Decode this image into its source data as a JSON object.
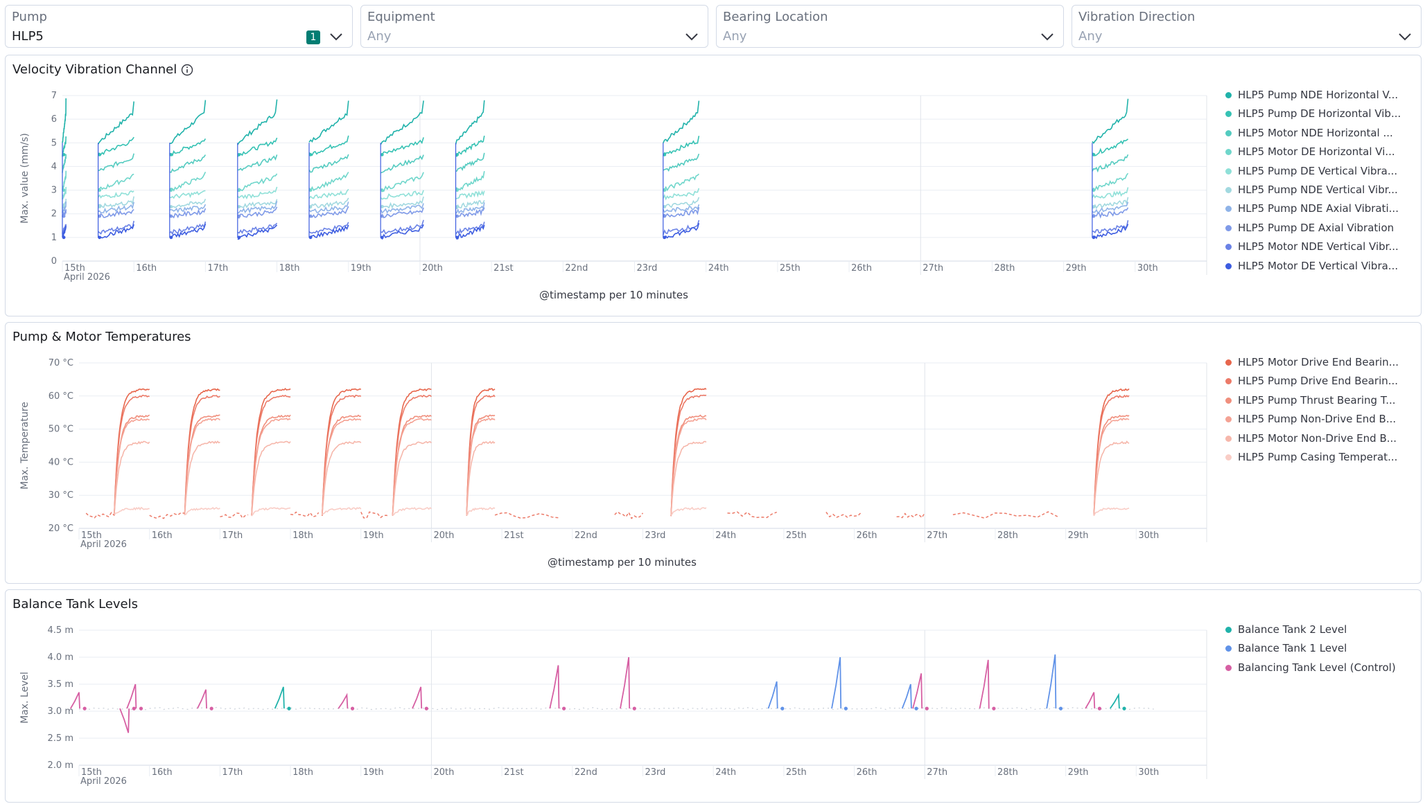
{
  "filters": [
    {
      "label": "Pump",
      "value": "HLP5",
      "badge": "1",
      "placeholder": false
    },
    {
      "label": "Equipment",
      "value": "Any",
      "placeholder": true
    },
    {
      "label": "Bearing Location",
      "value": "Any",
      "placeholder": true
    },
    {
      "label": "Vibration Direction",
      "value": "Any",
      "placeholder": true
    }
  ],
  "x_axis": {
    "days": [
      "15th",
      "16th",
      "17th",
      "18th",
      "19th",
      "20th",
      "21st",
      "22nd",
      "23rd",
      "24th",
      "25th",
      "26th",
      "27th",
      "28th",
      "29th",
      "30th"
    ],
    "month_label": "April 2026"
  },
  "panels": [
    {
      "title": "Velocity Vibration Channel",
      "has_info_icon": true,
      "xlabel": "@timestamp per 10 minutes",
      "legend": [
        {
          "label": "HLP5 Pump NDE Horizontal V...",
          "color": "#20b2aa"
        },
        {
          "label": "HLP5 Pump DE Horizontal Vib...",
          "color": "#36c2b4"
        },
        {
          "label": "HLP5 Motor NDE Horizontal ...",
          "color": "#54cbc0"
        },
        {
          "label": "HLP5 Motor DE Horizontal Vi...",
          "color": "#6fd6cb"
        },
        {
          "label": "HLP5 Pump DE Vertical Vibra...",
          "color": "#8fe0d8"
        },
        {
          "label": "HLP5 Pump NDE Vertical Vibr...",
          "color": "#a2d9e0"
        },
        {
          "label": "HLP5 Pump NDE Axial Vibrati...",
          "color": "#8fb3e8"
        },
        {
          "label": "HLP5 Pump DE Axial Vibration",
          "color": "#7f9ae8"
        },
        {
          "label": "HLP5 Motor NDE Vertical Vibr...",
          "color": "#6a82e6"
        },
        {
          "label": "HLP5 Motor DE Vertical Vibra...",
          "color": "#3c5ce0"
        }
      ]
    },
    {
      "title": "Pump & Motor Temperatures",
      "has_info_icon": false,
      "xlabel": "@timestamp per 10 minutes",
      "legend": [
        {
          "label": "HLP5 Motor Drive End Bearin...",
          "color": "#e7664c"
        },
        {
          "label": "HLP5 Pump Drive End Bearin...",
          "color": "#ec7a68"
        },
        {
          "label": "HLP5 Pump Thrust Bearing T...",
          "color": "#f08f7d"
        },
        {
          "label": "HLP5 Pump Non-Drive End B...",
          "color": "#f4a294"
        },
        {
          "label": "HLP5 Motor Non-Drive End B...",
          "color": "#f6b7ab"
        },
        {
          "label": "HLP5 Pump Casing Temperat...",
          "color": "#f9cdc6"
        }
      ]
    },
    {
      "title": "Balance Tank Levels",
      "has_info_icon": false,
      "xlabel": "",
      "legend": [
        {
          "label": "Balance Tank 2 Level",
          "color": "#20b2aa"
        },
        {
          "label": "Balance Tank 1 Level",
          "color": "#6092e8"
        },
        {
          "label": "Balancing Tank Level (Control)",
          "color": "#d65fa3"
        }
      ]
    }
  ],
  "chart_data": [
    {
      "type": "line",
      "title": "Velocity Vibration Channel",
      "ylabel": "Max. value (mm/s)",
      "xlabel": "@timestamp per 10 minutes",
      "ylim": [
        0,
        7
      ],
      "yticks": [
        "0",
        "1",
        "2",
        "3",
        "4",
        "5",
        "6",
        "7"
      ],
      "x_range_days": [
        15,
        31
      ],
      "run_windows": [
        [
          15.0,
          15.05
        ],
        [
          15.5,
          16.0
        ],
        [
          16.5,
          17.0
        ],
        [
          17.45,
          18.0
        ],
        [
          18.45,
          19.0
        ],
        [
          19.45,
          20.05
        ],
        [
          20.5,
          20.9
        ],
        [
          23.4,
          23.9
        ],
        [
          29.4,
          29.9
        ]
      ],
      "series": [
        {
          "name": "HLP5 Pump NDE Horizontal V...",
          "level_start": 5.0,
          "level_end": 6.3
        },
        {
          "name": "HLP5 Pump DE Horizontal Vib...",
          "level_start": 4.5,
          "level_end": 5.1
        },
        {
          "name": "HLP5 Motor NDE Horizontal ...",
          "level_start": 3.8,
          "level_end": 4.4
        },
        {
          "name": "HLP5 Motor DE Horizontal Vi...",
          "level_start": 3.0,
          "level_end": 3.6
        },
        {
          "name": "HLP5 Pump DE Vertical Vibra...",
          "level_start": 2.7,
          "level_end": 2.9
        },
        {
          "name": "HLP5 Pump NDE Vertical Vibr...",
          "level_start": 2.3,
          "level_end": 2.5
        },
        {
          "name": "HLP5 Pump NDE Axial Vibrati...",
          "level_start": 2.1,
          "level_end": 2.3
        },
        {
          "name": "HLP5 Pump DE Axial Vibration",
          "level_start": 1.9,
          "level_end": 2.1
        },
        {
          "name": "HLP5 Motor NDE Vertical Vibr...",
          "level_start": 1.2,
          "level_end": 1.5
        },
        {
          "name": "HLP5 Motor DE Vertical Vibra...",
          "level_start": 1.0,
          "level_end": 1.4
        }
      ]
    },
    {
      "type": "line",
      "title": "Pump & Motor Temperatures",
      "ylabel": "Max. Temperature",
      "xlabel": "@timestamp per 10 minutes",
      "ylim": [
        20,
        70
      ],
      "yticks": [
        "20 °C",
        "30 °C",
        "40 °C",
        "50 °C",
        "60 °C",
        "70 °C"
      ],
      "x_range_days": [
        15,
        31
      ],
      "run_windows": [
        [
          15.5,
          16.0
        ],
        [
          16.5,
          17.0
        ],
        [
          17.45,
          18.0
        ],
        [
          18.45,
          19.0
        ],
        [
          19.45,
          20.0
        ],
        [
          20.5,
          20.9
        ],
        [
          23.4,
          23.9
        ],
        [
          29.4,
          29.9
        ]
      ],
      "idle_level": 24,
      "series": [
        {
          "name": "HLP5 Motor Drive End Bearin...",
          "peak": 62
        },
        {
          "name": "HLP5 Pump Drive End Bearin...",
          "peak": 60
        },
        {
          "name": "HLP5 Pump Thrust Bearing T...",
          "peak": 54
        },
        {
          "name": "HLP5 Pump Non-Drive End B...",
          "peak": 53
        },
        {
          "name": "HLP5 Motor Non-Drive End B...",
          "peak": 46
        },
        {
          "name": "HLP5 Pump Casing Temperat...",
          "peak": 26
        }
      ]
    },
    {
      "type": "line",
      "title": "Balance Tank Levels",
      "ylabel": "Max. Level",
      "xlabel": "",
      "ylim": [
        2.0,
        4.5
      ],
      "yticks": [
        "2.0 m",
        "2.5 m",
        "3.0 m",
        "3.5 m",
        "4.0 m",
        "4.5 m"
      ],
      "x_range_days": [
        15,
        31
      ],
      "base_level": 3.05,
      "series": [
        {
          "name": "Balance Tank 2 Level",
          "spikes": [
            [
              17.9,
              3.45
            ],
            [
              29.75,
              3.3
            ]
          ]
        },
        {
          "name": "Balance Tank 1 Level",
          "spikes": [
            [
              24.9,
              3.55
            ],
            [
              25.8,
              4.0
            ],
            [
              26.8,
              3.5
            ],
            [
              28.85,
              4.05
            ]
          ]
        },
        {
          "name": "Balancing Tank Level (Control)",
          "spikes": [
            [
              15.0,
              3.35
            ],
            [
              15.7,
              2.6
            ],
            [
              15.8,
              3.5
            ],
            [
              16.8,
              3.4
            ],
            [
              18.8,
              3.3
            ],
            [
              19.85,
              3.45
            ],
            [
              21.8,
              3.85
            ],
            [
              22.8,
              4.0
            ],
            [
              26.95,
              3.7
            ],
            [
              27.9,
              3.95
            ],
            [
              29.4,
              3.35
            ]
          ]
        }
      ]
    }
  ]
}
